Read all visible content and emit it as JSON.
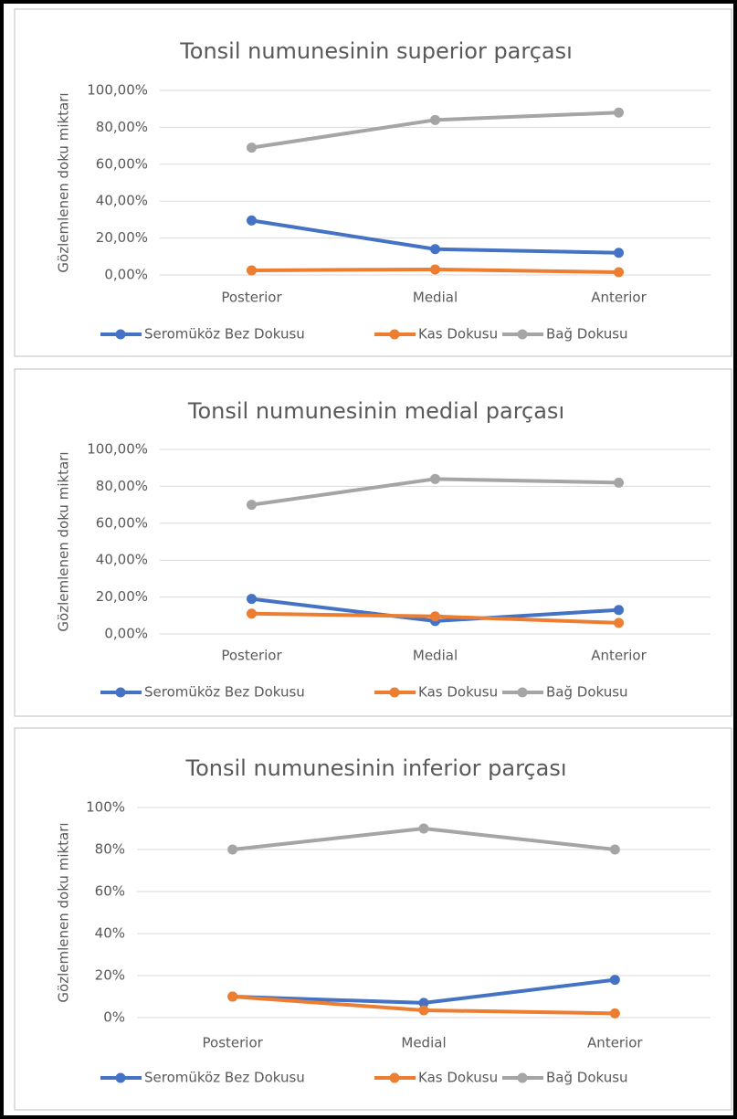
{
  "chart_data": [
    {
      "type": "line",
      "title": "Tonsil numunesinin superior parçası",
      "y_label": "Gözlemlenen doku miktarı",
      "categories": [
        "Posterior",
        "Medial",
        "Anterior"
      ],
      "series": [
        {
          "name": "Seromüköz Bez Dokusu",
          "color": "#4472c4",
          "values": [
            29.5,
            14,
            12
          ]
        },
        {
          "name": "Kas Dokusu",
          "color": "#ed7d31",
          "values": [
            2.5,
            3,
            1.5
          ]
        },
        {
          "name": "Bağ Dokusu",
          "color": "#a5a5a5",
          "values": [
            69,
            84,
            88
          ]
        }
      ],
      "ylim": [
        0,
        100
      ],
      "yticks": [
        {
          "value": 0,
          "label": "0,00%"
        },
        {
          "value": 20,
          "label": "20,00%"
        },
        {
          "value": 40,
          "label": "40,00%"
        },
        {
          "value": 60,
          "label": "60,00%"
        },
        {
          "value": 80,
          "label": "80,00%"
        },
        {
          "value": 100,
          "label": "100,00%"
        }
      ],
      "grid": true,
      "legend": "bottom"
    },
    {
      "type": "line",
      "title": "Tonsil numunesinin medial parçası",
      "y_label": "Gözlemlenen doku miktarı",
      "categories": [
        "Posterior",
        "Medial",
        "Anterior"
      ],
      "series": [
        {
          "name": "Seromüköz Bez Dokusu",
          "color": "#4472c4",
          "values": [
            19,
            7,
            13
          ]
        },
        {
          "name": "Kas Dokusu",
          "color": "#ed7d31",
          "values": [
            11,
            9.5,
            6
          ]
        },
        {
          "name": "Bağ Dokusu",
          "color": "#a5a5a5",
          "values": [
            70,
            84,
            82
          ]
        }
      ],
      "ylim": [
        0,
        100
      ],
      "yticks": [
        {
          "value": 0,
          "label": "0,00%"
        },
        {
          "value": 20,
          "label": "20,00%"
        },
        {
          "value": 40,
          "label": "40,00%"
        },
        {
          "value": 60,
          "label": "60,00%"
        },
        {
          "value": 80,
          "label": "80,00%"
        },
        {
          "value": 100,
          "label": "100,00%"
        }
      ],
      "grid": true,
      "legend": "bottom"
    },
    {
      "type": "line",
      "title": "Tonsil numunesinin inferior parçası",
      "y_label": "Gözlemlenen doku miktarı",
      "categories": [
        "Posterior",
        "Medial",
        "Anterior"
      ],
      "series": [
        {
          "name": "Seromüköz Bez Dokusu",
          "color": "#4472c4",
          "values": [
            10,
            7,
            18
          ]
        },
        {
          "name": "Kas Dokusu",
          "color": "#ed7d31",
          "values": [
            10,
            3.5,
            2
          ]
        },
        {
          "name": "Bağ Dokusu",
          "color": "#a5a5a5",
          "values": [
            80,
            90,
            80
          ]
        }
      ],
      "ylim": [
        0,
        100
      ],
      "yticks": [
        {
          "value": 0,
          "label": "0%"
        },
        {
          "value": 20,
          "label": "20%"
        },
        {
          "value": 40,
          "label": "40%"
        },
        {
          "value": 60,
          "label": "60%"
        },
        {
          "value": 80,
          "label": "80%"
        },
        {
          "value": 100,
          "label": "100%"
        }
      ],
      "grid": true,
      "legend": "bottom"
    }
  ]
}
